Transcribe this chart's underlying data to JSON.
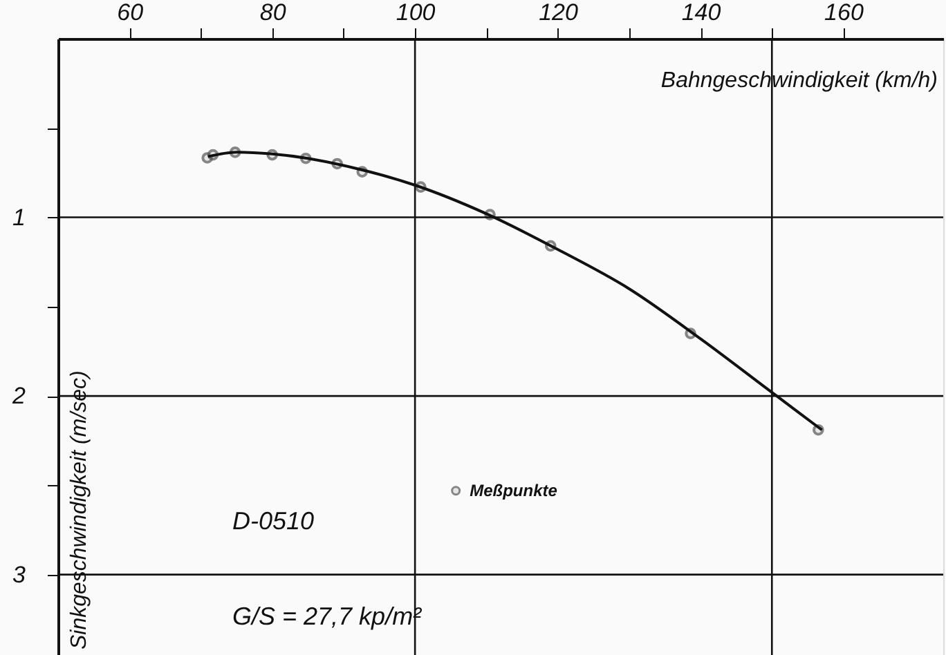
{
  "chart_data": {
    "type": "scatter",
    "xlabel": "Bahngeschwindigkeit (km/h)",
    "ylabel": "Sinkgeschwindigkeit (m/sec)",
    "xlim": [
      50,
      174
    ],
    "ylim": [
      3.45,
      0
    ],
    "xticks": [
      60,
      {
        "value": 70,
        "label": null
      },
      80,
      {
        "value": 90,
        "label": null
      },
      100,
      {
        "value": 110,
        "label": null
      },
      120,
      {
        "value": 130,
        "label": null
      },
      140,
      {
        "value": 150,
        "label": null
      },
      160
    ],
    "yticks": [
      {
        "value": 0.5,
        "label": null
      },
      1,
      {
        "value": 1.5,
        "label": null
      },
      2,
      {
        "value": 2.5,
        "label": null
      },
      3
    ],
    "series": [
      {
        "name": "Meßpunkte",
        "marker": "circle",
        "color": "#555555",
        "x": [
          70.9,
          71.7,
          74.8,
          80,
          84.7,
          89.1,
          92.6,
          100.8,
          110.5,
          119,
          138.6,
          156.5
        ],
        "values": [
          0.667,
          0.65,
          0.636,
          0.65,
          0.67,
          0.7,
          0.745,
          0.83,
          0.985,
          1.16,
          1.65,
          2.19
        ]
      },
      {
        "type": "line",
        "color": "#111111",
        "marker": "none",
        "line_style": "solid",
        "x": [
          71,
          75,
          80,
          85,
          90,
          100,
          110,
          120,
          130,
          140,
          150,
          157
        ],
        "values": [
          0.66,
          0.635,
          0.645,
          0.67,
          0.71,
          0.82,
          0.98,
          1.18,
          1.4,
          1.68,
          1.98,
          2.19
        ]
      }
    ],
    "ref_lines": [
      {
        "axis": "x",
        "value": 100,
        "color": "#111111"
      },
      {
        "axis": "x",
        "value": 150,
        "color": "#111111"
      },
      {
        "axis": "y",
        "value": 1,
        "color": "#111111"
      },
      {
        "axis": "y",
        "value": 2,
        "color": "#111111"
      },
      {
        "axis": "y",
        "value": 3,
        "color": "#111111"
      }
    ],
    "annotations": [
      "D-0510",
      "G/S = 27,7 kp/m²"
    ],
    "legend": "bottom",
    "grid": false
  }
}
